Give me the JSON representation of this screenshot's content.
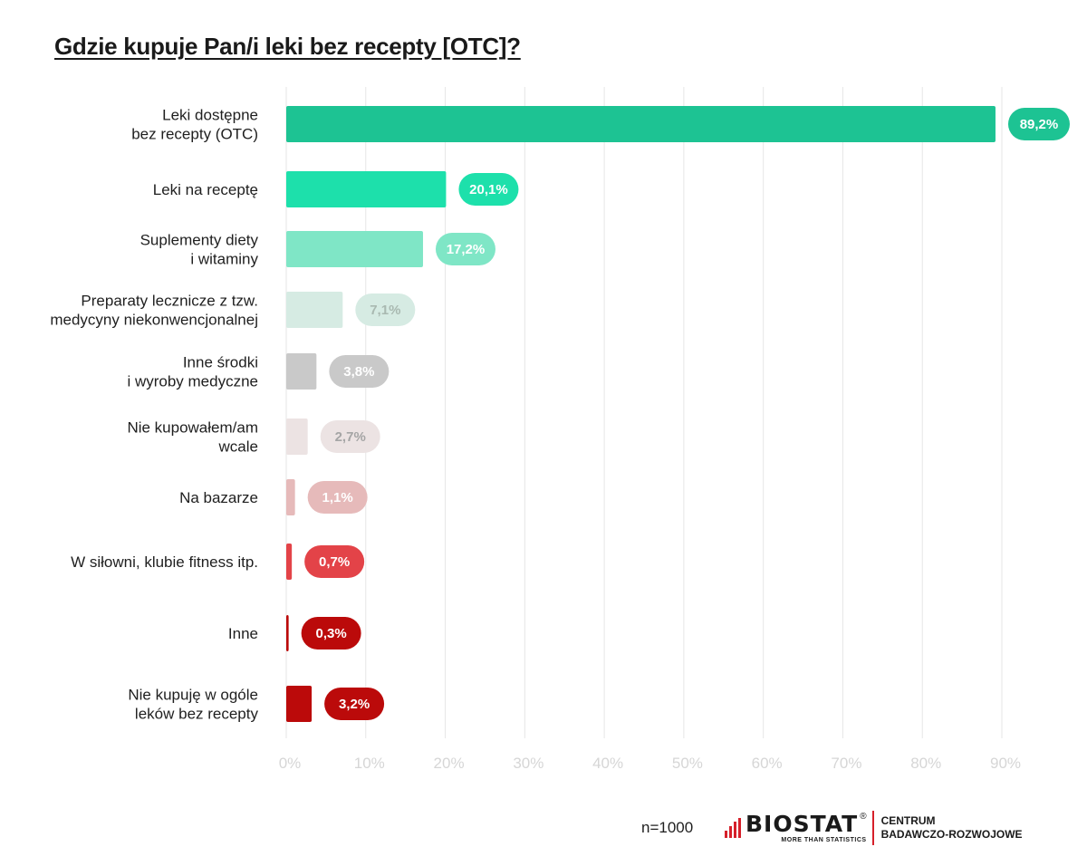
{
  "title": "Gdzie kupuje Pan/i leki bez recepty [OTC]?",
  "footer": {
    "sample": "n=1000",
    "brand": "BIOSTAT",
    "brand_registered": "®",
    "brand_tagline": "MORE THAN STATISTICS",
    "center_line1": "CENTRUM",
    "center_line2": "BADAWCZO-ROZWOJOWE",
    "brand_color": "#d6202a"
  },
  "chart_data": {
    "type": "bar",
    "orientation": "horizontal",
    "categories": [
      [
        "Leki dostępne",
        "bez recepty (OTC)"
      ],
      [
        "Leki na receptę"
      ],
      [
        "Suplementy diety",
        "i witaminy"
      ],
      [
        "Preparaty lecznicze z tzw.",
        "medycyny  niekonwencjonalnej"
      ],
      [
        "Inne środki",
        "i wyroby medyczne"
      ],
      [
        "Nie kupowałem/am",
        "wcale"
      ],
      [
        "Na bazarze"
      ],
      [
        "W siłowni, klubie fitness itp."
      ],
      [
        "Inne"
      ],
      [
        "Nie kupuję w ogóle",
        "leków bez recepty"
      ]
    ],
    "values": [
      89.2,
      20.1,
      17.2,
      7.1,
      3.8,
      2.7,
      1.1,
      0.7,
      0.3,
      3.2
    ],
    "value_labels": [
      "89,2%",
      "20,1%",
      "17,2%",
      "7,1%",
      "3,8%",
      "2,7%",
      "1,1%",
      "0,7%",
      "0,3%",
      "3,2%"
    ],
    "bar_colors": [
      "#1dc393",
      "#1de0ab",
      "#7fe6c6",
      "#d6ebe3",
      "#c9c9c9",
      "#ece3e3",
      "#e6baba",
      "#e34348",
      "#bb0a0a",
      "#bb0a0a"
    ],
    "label_text_colors": [
      "#ffffff",
      "#ffffff",
      "#ffffff",
      "#a9b9b1",
      "#ffffff",
      "#a5a5a5",
      "#ffffff",
      "#ffffff",
      "#ffffff",
      "#ffffff"
    ],
    "xlim": [
      0,
      90
    ],
    "xticks": [
      0,
      10,
      20,
      30,
      40,
      50,
      60,
      70,
      80,
      90
    ],
    "xtick_labels": [
      "0%",
      "10%",
      "20%",
      "30%",
      "40%",
      "50%",
      "60%",
      "70%",
      "80%",
      "90%"
    ],
    "grid": true,
    "legend": "none"
  }
}
